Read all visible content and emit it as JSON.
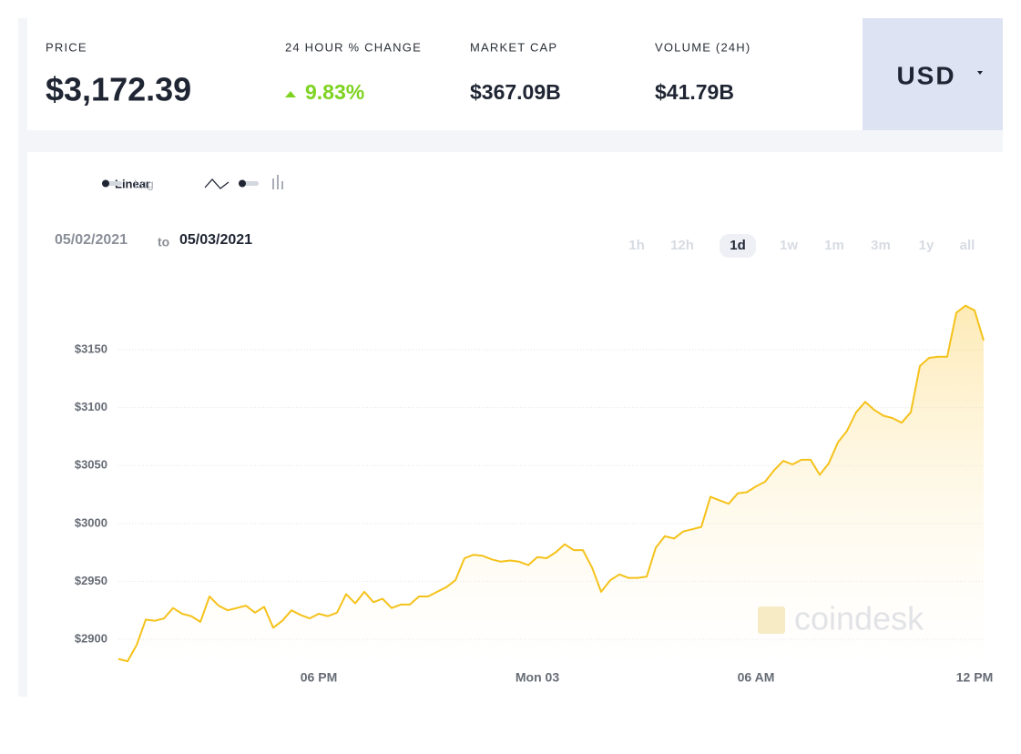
{
  "stats": [
    {
      "label": "PRICE",
      "value": "$3,172.39"
    },
    {
      "label": "24 HOUR % CHANGE",
      "value": "9.83%"
    },
    {
      "label": "MARKET CAP",
      "value": "$367.09B"
    },
    {
      "label": "VOLUME (24H)",
      "value": "$41.79B"
    }
  ],
  "currency": "USD",
  "scale_options": [
    "Linear",
    "Log"
  ],
  "date_range": {
    "from": "05/02/2021",
    "separator": "to",
    "to": "05/03/2021"
  },
  "ranges": [
    "1h",
    "12h",
    "1d",
    "1w",
    "1m",
    "3m",
    "1y",
    "all"
  ],
  "selected_range": "1d",
  "watermark": "coindesk",
  "chart_data": {
    "type": "area",
    "color": "#f5c21b",
    "categories": [
      null,
      null,
      null,
      null,
      null,
      null,
      null,
      null,
      null,
      null,
      null,
      null,
      null,
      null,
      null,
      null,
      null,
      null,
      null,
      null,
      null,
      null,
      "06 PM",
      null,
      null,
      null,
      null,
      null,
      null,
      null,
      null,
      null,
      null,
      null,
      null,
      null,
      null,
      null,
      null,
      null,
      null,
      null,
      null,
      null,
      null,
      null,
      "Mon 03",
      null,
      null,
      null,
      null,
      null,
      null,
      null,
      null,
      null,
      null,
      null,
      null,
      null,
      null,
      null,
      null,
      null,
      null,
      null,
      null,
      null,
      null,
      null,
      "06 AM",
      null,
      null,
      null,
      null,
      null,
      null,
      null,
      null,
      null,
      null,
      null,
      null,
      null,
      null,
      null,
      null,
      null,
      null,
      null,
      null,
      null,
      null,
      null,
      "12 PM",
      null
    ],
    "values": [
      2883,
      2881,
      2895,
      2917,
      2916,
      2918,
      2927,
      2922,
      2920,
      2915,
      2937,
      2929,
      2925,
      2927,
      2929,
      2923,
      2928,
      2910,
      2916,
      2925,
      2921,
      2918,
      2922,
      2920,
      2923,
      2939,
      2931,
      2941,
      2932,
      2935,
      2927,
      2930,
      2930,
      2937,
      2937,
      2941,
      2945,
      2951,
      2970,
      2973,
      2972,
      2969,
      2967,
      2968,
      2967,
      2964,
      2971,
      2970,
      2975,
      2982,
      2977,
      2977,
      2962,
      2941,
      2951,
      2956,
      2953,
      2953,
      2954,
      2979,
      2989,
      2987,
      2993,
      2995,
      2997,
      3023,
      3020,
      3017,
      3026,
      3027,
      3032,
      3036,
      3046,
      3054,
      3051,
      3055,
      3055,
      3042,
      3052,
      3070,
      3080,
      3096,
      3105,
      3098,
      3093,
      3091,
      3087,
      3096,
      3136,
      3143,
      3144,
      3144,
      3182,
      3188,
      3184,
      3158
    ],
    "ylim": [
      2878,
      3198
    ],
    "yticks": [
      {
        "value": 2900,
        "label": "$2900"
      },
      {
        "value": 2950,
        "label": "$2950"
      },
      {
        "value": 3000,
        "label": "$3000"
      },
      {
        "value": 3050,
        "label": "$3050"
      },
      {
        "value": 3100,
        "label": "$3100"
      },
      {
        "value": 3150,
        "label": "$3150"
      }
    ],
    "grid": true
  }
}
